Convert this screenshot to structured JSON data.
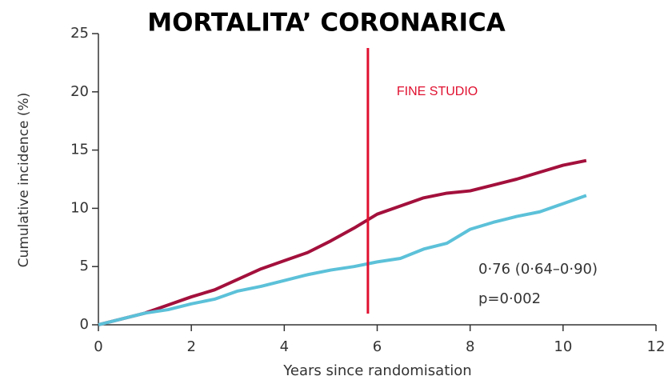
{
  "chart_data": {
    "type": "line",
    "title": "MORTALITA’ CORONARICA",
    "xlabel": "Years since randomisation",
    "ylabel": "Cumulative incidence (%)",
    "x": [
      0,
      0.5,
      1,
      1.5,
      2,
      2.5,
      3,
      3.5,
      4,
      4.5,
      5,
      5.5,
      6,
      6.5,
      7,
      7.5,
      8,
      8.5,
      9,
      9.5,
      10,
      10.5
    ],
    "series": [
      {
        "color": "#a3103c",
        "values": [
          0,
          0.5,
          1.0,
          1.7,
          2.4,
          3.0,
          3.9,
          4.8,
          5.5,
          6.2,
          7.2,
          8.3,
          9.5,
          10.2,
          10.9,
          11.3,
          11.5,
          12.0,
          12.5,
          13.1,
          13.7,
          14.1
        ]
      },
      {
        "color": "#5cc1d9",
        "values": [
          0,
          0.5,
          1.0,
          1.3,
          1.8,
          2.2,
          2.9,
          3.3,
          3.8,
          4.3,
          4.7,
          5.0,
          5.4,
          5.7,
          6.5,
          7.0,
          8.2,
          8.8,
          9.3,
          9.7,
          10.4,
          11.1
        ]
      }
    ],
    "xlim": [
      0,
      12
    ],
    "xticks": [
      0,
      2,
      4,
      6,
      8,
      10,
      12
    ],
    "ylim": [
      0,
      25
    ],
    "yticks": [
      0,
      5,
      10,
      15,
      20,
      25
    ],
    "vline": {
      "x": 5.8,
      "label": "FINE STUDIO",
      "color": "#e0102f"
    },
    "annotations": [
      "0·76 (0·64–0·90)",
      "p=0·002"
    ]
  }
}
